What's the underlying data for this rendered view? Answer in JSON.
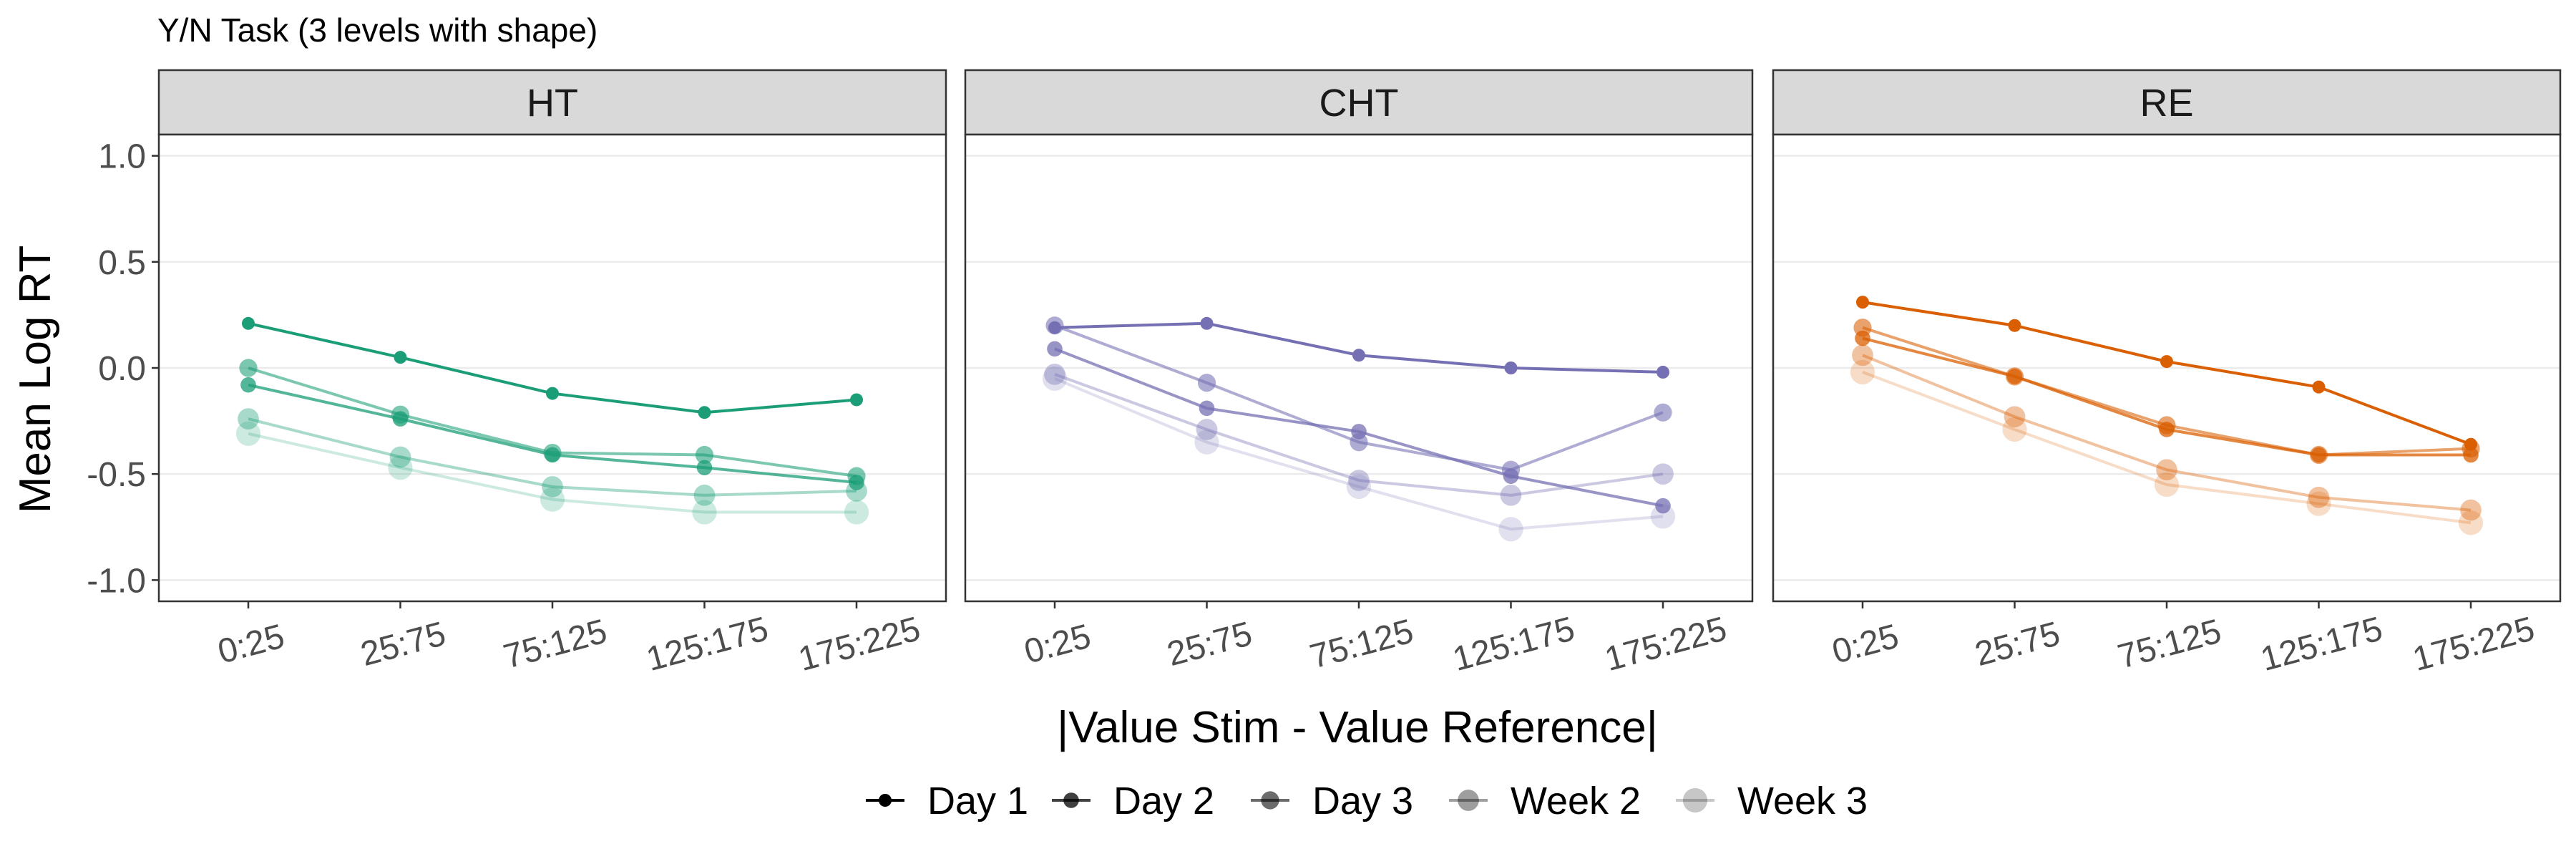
{
  "chart_data": {
    "type": "line",
    "title": "Y/N Task (3 levels with shape)",
    "xlabel": "|Value Stim - Value Reference|",
    "ylabel": "Mean Log RT",
    "ylim": [
      -1.1,
      1.1
    ],
    "yticks": [
      1.0,
      0.5,
      0.0,
      -0.5,
      -1.0
    ],
    "ytick_labels": [
      "1.0",
      "0.5",
      "0.0",
      "-0.5",
      "-1.0"
    ],
    "categories": [
      "0:25",
      "25:75",
      "75:125",
      "125:175",
      "175:225"
    ],
    "grid": true,
    "legend_position": "bottom",
    "sessions": [
      {
        "name": "Day 1",
        "opacity": 1.0,
        "size": 1.0
      },
      {
        "name": "Day 2",
        "opacity": 0.75,
        "size": 1.2
      },
      {
        "name": "Day 3",
        "opacity": 0.58,
        "size": 1.4
      },
      {
        "name": "Week 2",
        "opacity": 0.38,
        "size": 1.65
      },
      {
        "name": "Week 3",
        "opacity": 0.22,
        "size": 1.9
      }
    ],
    "panels": [
      {
        "label": "HT",
        "color": "#1b9e77",
        "series": [
          {
            "name": "Day 1",
            "values": [
              0.21,
              0.05,
              -0.12,
              -0.21,
              -0.15
            ]
          },
          {
            "name": "Day 2",
            "values": [
              -0.08,
              -0.24,
              -0.41,
              -0.47,
              -0.54
            ]
          },
          {
            "name": "Day 3",
            "values": [
              0.0,
              -0.22,
              -0.4,
              -0.41,
              -0.51
            ]
          },
          {
            "name": "Week 2",
            "values": [
              -0.24,
              -0.42,
              -0.56,
              -0.6,
              -0.58
            ]
          },
          {
            "name": "Week 3",
            "values": [
              -0.31,
              -0.47,
              -0.62,
              -0.68,
              -0.68
            ]
          }
        ]
      },
      {
        "label": "CHT",
        "color": "#7570b3",
        "series": [
          {
            "name": "Day 1",
            "values": [
              0.19,
              0.21,
              0.06,
              0.0,
              -0.02
            ]
          },
          {
            "name": "Day 2",
            "values": [
              0.09,
              -0.19,
              -0.3,
              -0.51,
              -0.65
            ]
          },
          {
            "name": "Day 3",
            "values": [
              0.2,
              -0.07,
              -0.35,
              -0.48,
              -0.21
            ]
          },
          {
            "name": "Week 2",
            "values": [
              -0.03,
              -0.29,
              -0.53,
              -0.6,
              -0.5
            ]
          },
          {
            "name": "Week 3",
            "values": [
              -0.05,
              -0.35,
              -0.56,
              -0.76,
              -0.7
            ]
          }
        ]
      },
      {
        "label": "RE",
        "color": "#d95f02",
        "series": [
          {
            "name": "Day 1",
            "values": [
              0.31,
              0.2,
              0.03,
              -0.09,
              -0.36
            ]
          },
          {
            "name": "Day 2",
            "values": [
              0.14,
              -0.04,
              -0.29,
              -0.41,
              -0.41
            ]
          },
          {
            "name": "Day 3",
            "values": [
              0.19,
              -0.04,
              -0.27,
              -0.41,
              -0.38
            ]
          },
          {
            "name": "Week 2",
            "values": [
              0.06,
              -0.23,
              -0.48,
              -0.61,
              -0.67
            ]
          },
          {
            "name": "Week 3",
            "values": [
              -0.02,
              -0.29,
              -0.55,
              -0.64,
              -0.73
            ]
          }
        ]
      }
    ]
  }
}
